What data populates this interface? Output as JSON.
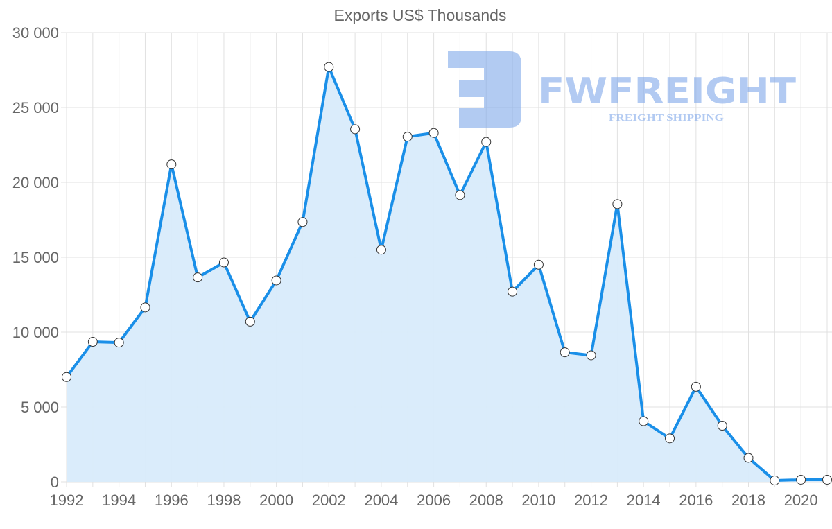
{
  "chart_data": {
    "type": "area",
    "title": "Exports US$ Thousands",
    "xlabel": "",
    "ylabel": "",
    "x": [
      1992,
      1993,
      1994,
      1995,
      1996,
      1997,
      1998,
      1999,
      2000,
      2001,
      2002,
      2003,
      2004,
      2005,
      2006,
      2007,
      2008,
      2009,
      2010,
      2011,
      2012,
      2013,
      2014,
      2015,
      2016,
      2017,
      2018,
      2019,
      2020,
      2021
    ],
    "series": [
      {
        "name": "Exports US$ Thousands",
        "values": [
          7000,
          9350,
          9300,
          11650,
          21200,
          13650,
          14650,
          10700,
          13450,
          17350,
          27700,
          23550,
          15500,
          23050,
          23300,
          19150,
          22700,
          12700,
          14500,
          8650,
          8450,
          18550,
          4050,
          2900,
          6350,
          3750,
          1600,
          90,
          140,
          140
        ]
      }
    ],
    "ylim": [
      0,
      30000
    ],
    "yticks": [
      0,
      5000,
      10000,
      15000,
      20000,
      25000,
      30000
    ],
    "ytick_labels": [
      "0",
      "5 000",
      "10 000",
      "15 000",
      "20 000",
      "25 000",
      "30 000"
    ],
    "xticks": [
      1992,
      1994,
      1996,
      1998,
      2000,
      2002,
      2004,
      2006,
      2008,
      2010,
      2012,
      2014,
      2016,
      2018,
      2020
    ],
    "xtick_labels": [
      "1992",
      "1994",
      "1996",
      "1998",
      "2000",
      "2002",
      "2004",
      "2006",
      "2008",
      "2010",
      "2012",
      "2014",
      "2016",
      "2018",
      "2020"
    ],
    "grid": true,
    "legend": "none",
    "colors": {
      "line": "#1a8fe8",
      "fill": "#d8ebfb",
      "marker_fill": "#ffffff",
      "marker_stroke": "#333333"
    }
  },
  "watermark": {
    "brand": "FWFREIGHT",
    "tagline": "FREIGHT SHIPPING",
    "color": "#7fa8ea"
  }
}
